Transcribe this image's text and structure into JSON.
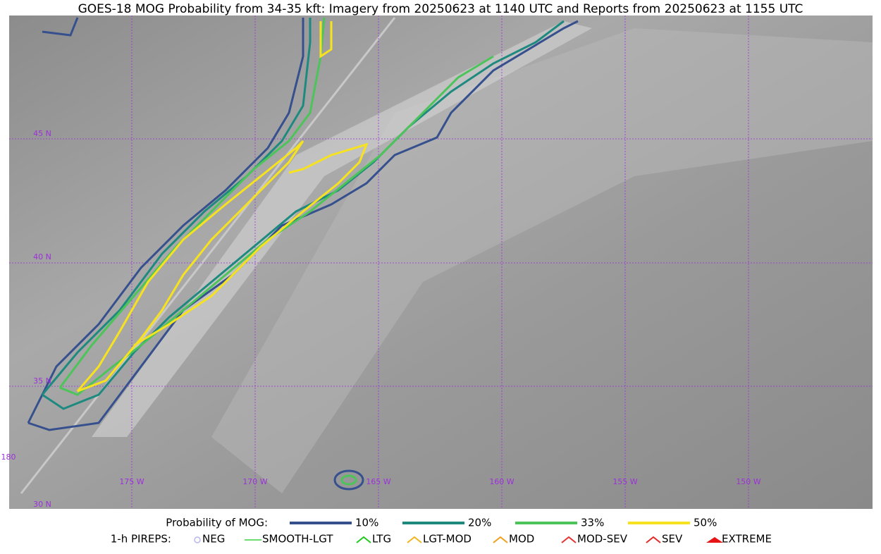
{
  "header": {
    "title": "GOES-18 MOG Probability from 34-35 kft: Imagery from 20250623 at 1140 UTC and Reports from 20250623 at 1155 UTC"
  },
  "map": {
    "lat_labels": [
      "45 N",
      "40 N",
      "35 N",
      "30 N"
    ],
    "lon_labels": [
      "175 W",
      "170 W",
      "165 W",
      "160 W",
      "155 W",
      "150 W",
      "180"
    ]
  },
  "legend": {
    "probability": {
      "label": "Probability of MOG:",
      "items": [
        {
          "label": "10%",
          "color": "#36508e"
        },
        {
          "label": "20%",
          "color": "#1e8a7f"
        },
        {
          "label": "33%",
          "color": "#4cc45a"
        },
        {
          "label": "50%",
          "color": "#f7e21f"
        }
      ]
    },
    "pireps": {
      "label": "1-h PIREPS:",
      "items": [
        {
          "label": "NEG",
          "color": "#b8b8f0"
        },
        {
          "label": "SMOOTH-LGT",
          "color": "#3bd13b"
        },
        {
          "label": "LTG",
          "color": "#1ec81e"
        },
        {
          "label": "LGT-MOD",
          "color": "#f0b41e"
        },
        {
          "label": "MOD",
          "color": "#f0a01e"
        },
        {
          "label": "MOD-SEV",
          "color": "#e63232"
        },
        {
          "label": "SEV",
          "color": "#e62828"
        },
        {
          "label": "EXTREME",
          "color": "#e61414"
        }
      ]
    }
  }
}
